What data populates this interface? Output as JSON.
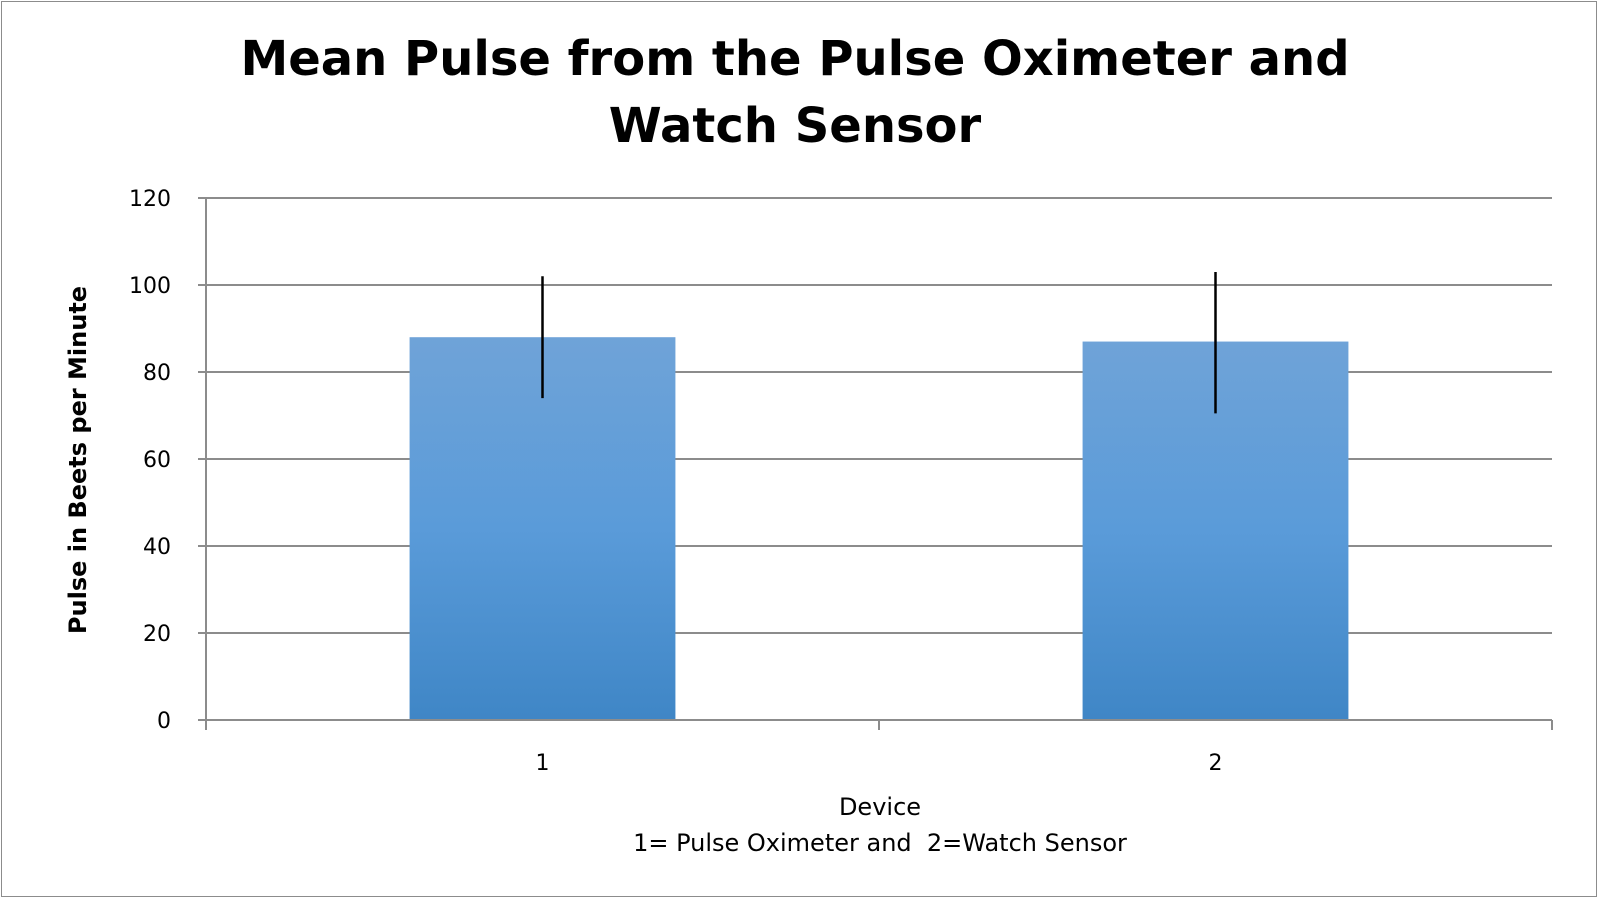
{
  "chart_data": {
    "type": "bar",
    "title": [
      "Mean Pulse from the Pulse Oximeter and",
      "Watch Sensor"
    ],
    "xlabel": "Device",
    "xlabel_note": "1= Pulse Oximeter and  2=Watch Sensor",
    "ylabel": "Pulse in Beets per Minute",
    "categories": [
      "1",
      "2"
    ],
    "values": [
      88,
      87
    ],
    "error_bars": [
      {
        "low": 74,
        "high": 102
      },
      {
        "low": 70.5,
        "high": 103
      }
    ],
    "ylim": [
      0,
      120
    ],
    "yticks": [
      0,
      20,
      40,
      60,
      80,
      100,
      120
    ],
    "grid": true,
    "legend": "none",
    "colors": {
      "bar_top": "#6fa3d8",
      "bar_mid": "#5a9bd9",
      "bar_bottom": "#3f86c6",
      "grid": "#8c8c8c",
      "error_bar": "#000000"
    }
  }
}
